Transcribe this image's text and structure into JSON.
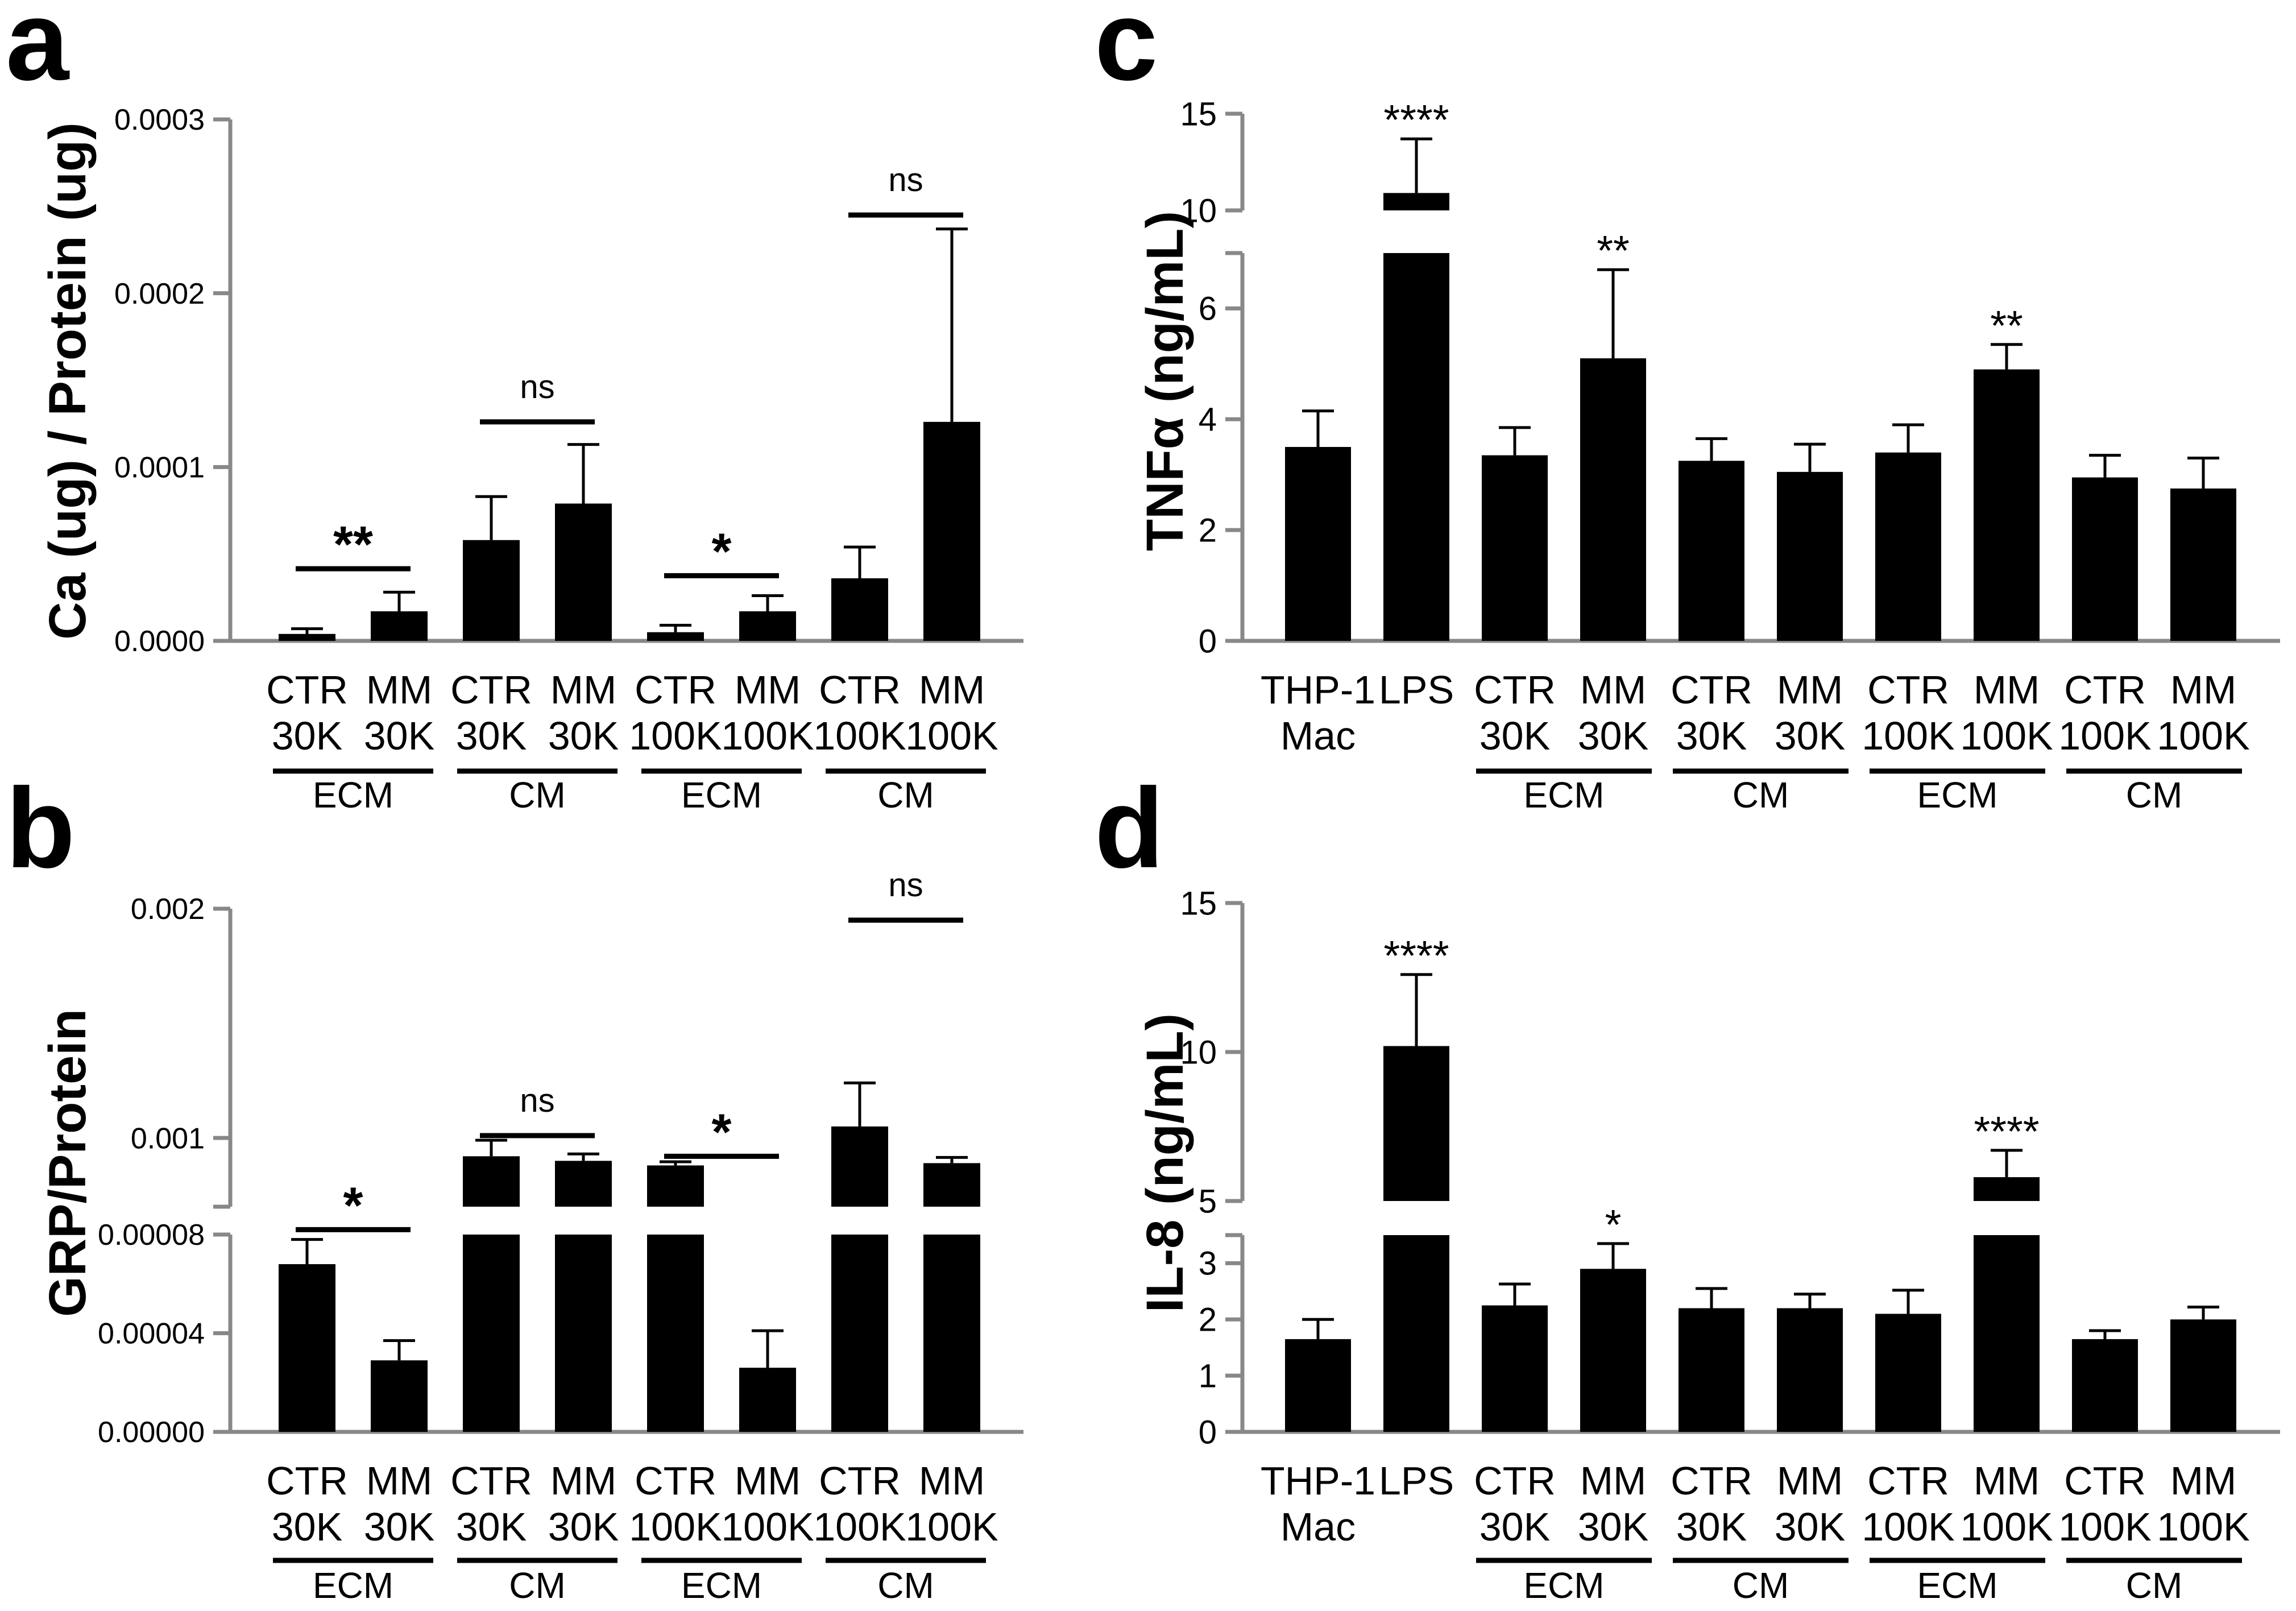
{
  "colors": {
    "bar": "#000000",
    "axis": "#888888",
    "background": "#ffffff"
  },
  "chart_data": [
    {
      "panel": "a",
      "type": "bar",
      "ylabel": "Ca (ug) / Protein (ug)",
      "ylim": [
        0,
        0.0003
      ],
      "yticks": [
        "0.0000",
        "0.0001",
        "0.0002",
        "0.0003"
      ],
      "ytick_values": [
        0,
        0.0001,
        0.0002,
        0.0003
      ],
      "categories": [
        [
          "CTR",
          "30K"
        ],
        [
          "MM",
          "30K"
        ],
        [
          "CTR",
          "30K"
        ],
        [
          "MM",
          "30K"
        ],
        [
          "CTR",
          "100K"
        ],
        [
          "MM",
          "100K"
        ],
        [
          "CTR",
          "100K"
        ],
        [
          "MM",
          "100K"
        ]
      ],
      "values": [
        4e-06,
        1.7e-05,
        5.8e-05,
        7.9e-05,
        5e-06,
        1.7e-05,
        3.6e-05,
        0.000126
      ],
      "errors": [
        3e-06,
        1.1e-05,
        2.5e-05,
        3.4e-05,
        4e-06,
        9e-06,
        1.8e-05,
        0.000111
      ],
      "groups": [
        {
          "label": "ECM",
          "span": [
            0,
            1
          ]
        },
        {
          "label": "CM",
          "span": [
            2,
            3
          ]
        },
        {
          "label": "ECM",
          "span": [
            4,
            5
          ]
        },
        {
          "label": "CM",
          "span": [
            6,
            7
          ]
        }
      ],
      "significance": [
        {
          "span": [
            0,
            1
          ],
          "label": "**",
          "level": 4.15e-05
        },
        {
          "span": [
            2,
            3
          ],
          "label": "ns",
          "level": 0.000126
        },
        {
          "span": [
            4,
            5
          ],
          "label": "*",
          "level": 3.75e-05
        },
        {
          "span": [
            6,
            7
          ],
          "label": "ns",
          "level": 0.000245
        }
      ]
    },
    {
      "panel": "b",
      "type": "bar",
      "ylabel": "GRP/Protein",
      "broken_axis": true,
      "lower_ylim": [
        0,
        8e-05
      ],
      "upper_ylim": [
        0.0007,
        0.002
      ],
      "yticks_lower": [
        "0.00000",
        "0.00004",
        "0.00008"
      ],
      "ytick_values_lower": [
        0,
        4e-05,
        8e-05
      ],
      "yticks_upper": [
        "0.001",
        "0.002"
      ],
      "ytick_values_upper": [
        0.001,
        0.002
      ],
      "categories": [
        [
          "CTR",
          "30K"
        ],
        [
          "MM",
          "30K"
        ],
        [
          "CTR",
          "30K"
        ],
        [
          "MM",
          "30K"
        ],
        [
          "CTR",
          "100K"
        ],
        [
          "MM",
          "100K"
        ],
        [
          "CTR",
          "100K"
        ],
        [
          "MM",
          "100K"
        ]
      ],
      "values": [
        6.8e-05,
        2.9e-05,
        0.00092,
        0.0009,
        0.00088,
        2.6e-05,
        0.00105,
        0.00089
      ],
      "errors": [
        1e-05,
        8e-06,
        7e-05,
        3e-05,
        1.6e-05,
        1.5e-05,
        0.00019,
        2.5e-05
      ],
      "groups": [
        {
          "label": "ECM",
          "span": [
            0,
            1
          ]
        },
        {
          "label": "CM",
          "span": [
            2,
            3
          ]
        },
        {
          "label": "ECM",
          "span": [
            4,
            5
          ]
        },
        {
          "label": "CM",
          "span": [
            6,
            7
          ]
        }
      ],
      "significance": [
        {
          "span": [
            0,
            1
          ],
          "label": "*",
          "axis": "lower",
          "level": 8.2e-05
        },
        {
          "span": [
            2,
            3
          ],
          "label": "ns",
          "axis": "upper",
          "level": 0.00101
        },
        {
          "span": [
            4,
            5
          ],
          "label": "*",
          "axis": "upper",
          "level": 0.00092
        },
        {
          "span": [
            6,
            7
          ],
          "label": "ns",
          "axis": "upper",
          "level": 0.00195
        }
      ]
    },
    {
      "panel": "c",
      "type": "bar",
      "ylabel": "TNFα (ng/mL)",
      "broken_axis": true,
      "lower_ylim": [
        0,
        7
      ],
      "upper_ylim": [
        10,
        15
      ],
      "yticks_lower": [
        "0",
        "2",
        "4",
        "6"
      ],
      "ytick_values_lower": [
        0,
        2,
        4,
        6
      ],
      "yticks_upper": [
        "10",
        "15"
      ],
      "ytick_values_upper": [
        10,
        15
      ],
      "categories": [
        [
          "THP-1",
          "Mac"
        ],
        [
          "LPS",
          ""
        ],
        [
          "CTR",
          "30K"
        ],
        [
          "MM",
          "30K"
        ],
        [
          "CTR",
          "30K"
        ],
        [
          "MM",
          "30K"
        ],
        [
          "CTR",
          "100K"
        ],
        [
          "MM",
          "100K"
        ],
        [
          "CTR",
          "100K"
        ],
        [
          "MM",
          "100K"
        ]
      ],
      "values": [
        3.5,
        10.9,
        3.35,
        5.1,
        3.25,
        3.05,
        3.4,
        4.9,
        2.95,
        2.75
      ],
      "errors": [
        0.65,
        2.8,
        0.5,
        1.6,
        0.4,
        0.5,
        0.5,
        0.45,
        0.4,
        0.55
      ],
      "groups": [
        {
          "label": "ECM",
          "span": [
            2,
            3
          ]
        },
        {
          "label": "CM",
          "span": [
            4,
            5
          ]
        },
        {
          "label": "ECM",
          "span": [
            6,
            7
          ]
        },
        {
          "label": "CM",
          "span": [
            8,
            9
          ]
        }
      ],
      "stars": [
        {
          "index": 1,
          "label": "****"
        },
        {
          "index": 3,
          "label": "**"
        },
        {
          "index": 7,
          "label": "**"
        }
      ]
    },
    {
      "panel": "d",
      "type": "bar",
      "ylabel": "IL-8 (ng/mL)",
      "broken_axis": true,
      "lower_ylim": [
        0,
        3.5
      ],
      "upper_ylim": [
        5,
        15
      ],
      "yticks_lower": [
        "0",
        "1",
        "2",
        "3"
      ],
      "ytick_values_lower": [
        0,
        1,
        2,
        3
      ],
      "yticks_upper": [
        "5",
        "10",
        "15"
      ],
      "ytick_values_upper": [
        5,
        10,
        15
      ],
      "categories": [
        [
          "THP-1",
          "Mac"
        ],
        [
          "LPS",
          ""
        ],
        [
          "CTR",
          "30K"
        ],
        [
          "MM",
          "30K"
        ],
        [
          "CTR",
          "30K"
        ],
        [
          "MM",
          "30K"
        ],
        [
          "CTR",
          "100K"
        ],
        [
          "MM",
          "100K"
        ],
        [
          "CTR",
          "100K"
        ],
        [
          "MM",
          "100K"
        ]
      ],
      "values": [
        1.65,
        10.2,
        2.25,
        2.9,
        2.2,
        2.2,
        2.1,
        5.8,
        1.65,
        2.0
      ],
      "errors": [
        0.35,
        2.4,
        0.38,
        0.45,
        0.35,
        0.25,
        0.42,
        0.9,
        0.15,
        0.22
      ],
      "groups": [
        {
          "label": "ECM",
          "span": [
            2,
            3
          ]
        },
        {
          "label": "CM",
          "span": [
            4,
            5
          ]
        },
        {
          "label": "ECM",
          "span": [
            6,
            7
          ]
        },
        {
          "label": "CM",
          "span": [
            8,
            9
          ]
        }
      ],
      "stars": [
        {
          "index": 1,
          "label": "****"
        },
        {
          "index": 3,
          "label": "*"
        },
        {
          "index": 7,
          "label": "****"
        }
      ]
    }
  ]
}
